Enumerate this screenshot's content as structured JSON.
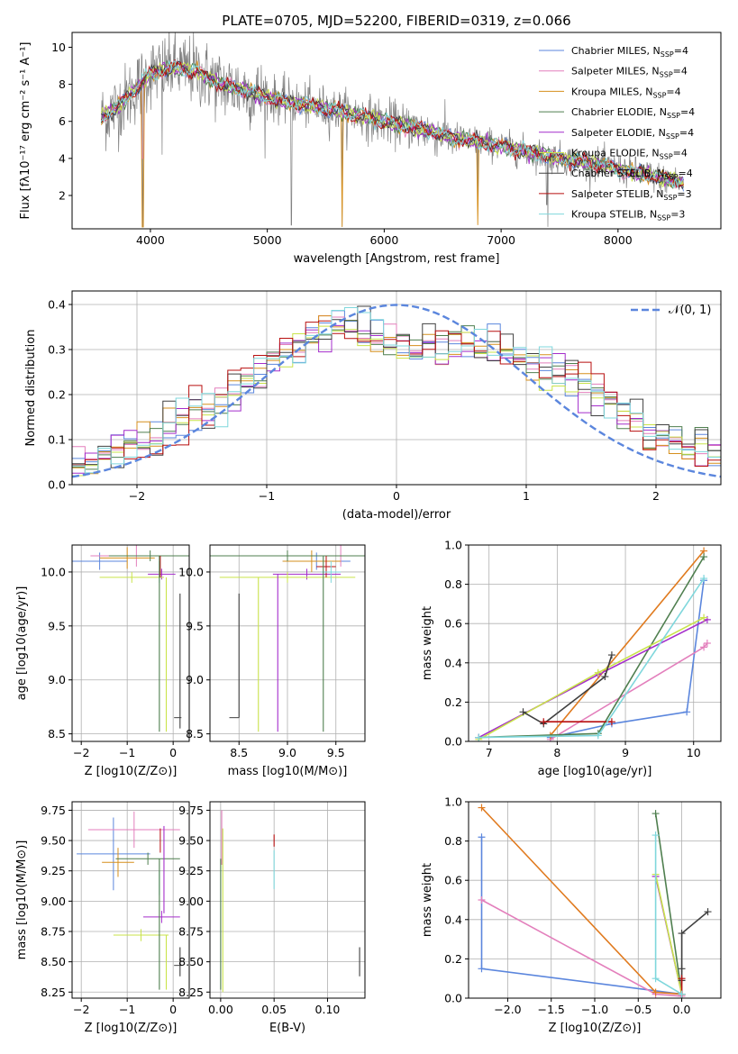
{
  "title": "PLATE=0705, MJD=52200, FIBERID=0319, z=0.066",
  "colors": {
    "Chabrier MILES": "#5b86dd",
    "Salpeter MILES": "#e37fbc",
    "Kroupa MILES": "#d68f1d",
    "Chabrier ELODIE": "#4f7f4f",
    "Salpeter ELODIE": "#a42dcb",
    "Kroupa ELODIE": "#c9e34a",
    "Chabrier STELIB": "#404040",
    "Salpeter STELIB": "#b80f0f",
    "Kroupa STELIB": "#7fd7dc",
    "data": "#808080",
    "normal": "#5b86dd",
    "orange": "#e07a1e"
  },
  "chart_data": [
    {
      "id": "spectrum",
      "type": "line",
      "title": "PLATE=0705, MJD=52200, FIBERID=0319, z=0.066",
      "xlabel": "wavelength [Angstrom, rest frame]",
      "ylabel": "Flux [fλ10⁻¹⁷ erg cm⁻² s⁻¹ A⁻¹]",
      "xlim": [
        3330,
        8880
      ],
      "ylim": [
        0.2,
        10.8
      ],
      "xticks": [
        4000,
        5000,
        6000,
        7000,
        8000
      ],
      "yticks": [
        2,
        4,
        6,
        8,
        10
      ],
      "legend_position": "upper-right",
      "legend": [
        {
          "name": "Chabrier MILES, N",
          "sub": "SSP",
          "tail": "=4"
        },
        {
          "name": "Salpeter MILES, N",
          "sub": "SSP",
          "tail": "=4"
        },
        {
          "name": "Kroupa MILES, N",
          "sub": "SSP",
          "tail": "=4"
        },
        {
          "name": "Chabrier ELODIE, N",
          "sub": "SSP",
          "tail": "=4"
        },
        {
          "name": "Salpeter ELODIE, N",
          "sub": "SSP",
          "tail": "=4"
        },
        {
          "name": "Kroupa ELODIE, N",
          "sub": "SSP",
          "tail": "=4"
        },
        {
          "name": "Chabrier STELIB, N",
          "sub": "SSP",
          "tail": "=4"
        },
        {
          "name": "Salpeter STELIB, N",
          "sub": "SSP",
          "tail": "=3"
        },
        {
          "name": "Kroupa STELIB, N",
          "sub": "SSP",
          "tail": "=3"
        }
      ],
      "data_range": [
        3580,
        8560
      ],
      "continuum": [
        [
          3580,
          6.2
        ],
        [
          3700,
          6.7
        ],
        [
          3850,
          7.6
        ],
        [
          4000,
          8.6
        ],
        [
          4200,
          8.9
        ],
        [
          4400,
          8.7
        ],
        [
          4600,
          8.0
        ],
        [
          4800,
          7.7
        ],
        [
          5000,
          7.3
        ],
        [
          5200,
          7.0
        ],
        [
          5500,
          6.7
        ],
        [
          5800,
          6.3
        ],
        [
          6000,
          6.0
        ],
        [
          6300,
          5.6
        ],
        [
          6600,
          5.1
        ],
        [
          6900,
          4.8
        ],
        [
          7200,
          4.4
        ],
        [
          7500,
          4.0
        ],
        [
          7800,
          3.7
        ],
        [
          8100,
          3.3
        ],
        [
          8400,
          2.9
        ],
        [
          8560,
          2.7
        ]
      ],
      "dips": [
        [
          3933,
          0.3
        ],
        [
          4100,
          4.2
        ],
        [
          5205,
          0.4
        ],
        [
          5640,
          0.3
        ],
        [
          6800,
          1.8
        ],
        [
          7400,
          0.3
        ],
        [
          7390,
          1.5
        ]
      ]
    },
    {
      "id": "residuals",
      "type": "histogram",
      "xlabel": "(data-model)/error",
      "ylabel": "Normed distribution",
      "xlim": [
        -2.5,
        2.5
      ],
      "ylim": [
        0,
        0.43
      ],
      "xticks": [
        -2,
        -1,
        0,
        1,
        2
      ],
      "yticks": [
        0.0,
        0.1,
        0.2,
        0.3,
        0.4
      ],
      "legend_position": "upper-right",
      "legend_label": "𝒩(0, 1)",
      "bin_width": 0.1,
      "base": [
        0.04,
        0.045,
        0.06,
        0.08,
        0.085,
        0.09,
        0.1,
        0.12,
        0.14,
        0.15,
        0.17,
        0.19,
        0.21,
        0.23,
        0.25,
        0.27,
        0.29,
        0.31,
        0.33,
        0.35,
        0.36,
        0.35,
        0.34,
        0.33,
        0.32,
        0.31,
        0.3,
        0.3,
        0.3,
        0.31,
        0.31,
        0.3,
        0.3,
        0.29,
        0.28,
        0.27,
        0.26,
        0.25,
        0.24,
        0.22,
        0.2,
        0.18,
        0.16,
        0.14,
        0.12,
        0.11,
        0.1,
        0.09,
        0.08,
        0.07
      ]
    },
    {
      "id": "age-Z",
      "type": "scatter",
      "xlabel": "Z [log10(Z/Z⊙)]",
      "ylabel": "age  [log10(age/yr)]",
      "xlim": [
        -2.2,
        0.35
      ],
      "ylim": [
        8.43,
        10.25
      ],
      "xticks": [
        -2,
        -1,
        0
      ],
      "yticks": [
        8.5,
        9.0,
        9.5,
        10.0
      ],
      "points": [
        {
          "model": "Chabrier MILES",
          "x": -1.6,
          "y": 10.1,
          "xerr": 0.6,
          "yerr": 0.08
        },
        {
          "model": "Salpeter MILES",
          "x": -0.8,
          "y": 10.15,
          "xerr": 1.0,
          "yerr": 0.1
        },
        {
          "model": "Kroupa MILES",
          "x": -1.0,
          "y": 10.13,
          "xerr": 0.6,
          "yerr": 0.1
        },
        {
          "model": "Chabrier ELODIE",
          "x": -0.5,
          "y": 10.15,
          "xerr": 0.9,
          "yerr": 0.05
        },
        {
          "model": "Salpeter ELODIE",
          "x": -0.25,
          "y": 9.98,
          "xerr": 0.3,
          "yerr": 0.05
        },
        {
          "model": "Kroupa ELODIE",
          "x": -0.9,
          "y": 9.95,
          "xerr": 0.7,
          "yerr": 0.05
        },
        {
          "model": "Chabrier STELIB",
          "x": 0.1,
          "y": 8.65,
          "xerr": 0.08,
          "yerr": 0.0
        },
        {
          "model": "Salpeter STELIB",
          "x": -0.28,
          "y": 10.05,
          "xerr": 0.0,
          "yerr": 0.1
        },
        {
          "model": "Kroupa STELIB",
          "x": -0.3,
          "y": 10.0,
          "xerr": 0.0,
          "yerr": 0.1
        }
      ],
      "vlines": [
        {
          "model": "Chabrier ELODIE",
          "x": -0.3,
          "y0": 8.52,
          "y1": 10.15
        },
        {
          "model": "Kroupa ELODIE",
          "x": -0.15,
          "y0": 8.52,
          "y1": 9.95
        },
        {
          "model": "Chabrier STELIB",
          "x": 0.15,
          "y0": 8.55,
          "y1": 9.8
        }
      ]
    },
    {
      "id": "age-mass",
      "type": "scatter",
      "xlabel": "mass [log10(M/M⊙)]",
      "ylabel": "",
      "xlim": [
        8.2,
        9.8
      ],
      "ylim": [
        8.43,
        10.25
      ],
      "xticks": [
        8.5,
        9.0,
        9.5
      ],
      "yticks": [
        8.5,
        9.0,
        9.5,
        10.0
      ],
      "points": [
        {
          "model": "Chabrier MILES",
          "x": 9.3,
          "y": 10.1,
          "xerr": 0.35,
          "yerr": 0.08
        },
        {
          "model": "Salpeter MILES",
          "x": 9.55,
          "y": 10.15,
          "xerr": 0.3,
          "yerr": 0.1
        },
        {
          "model": "Kroupa MILES",
          "x": 9.25,
          "y": 10.1,
          "xerr": 0.3,
          "yerr": 0.1
        },
        {
          "model": "Chabrier ELODIE",
          "x": 9.0,
          "y": 10.15,
          "xerr": 0.8,
          "yerr": 0.05
        },
        {
          "model": "Salpeter ELODIE",
          "x": 9.2,
          "y": 9.98,
          "xerr": 0.35,
          "yerr": 0.05
        },
        {
          "model": "Kroupa ELODIE",
          "x": 9.0,
          "y": 9.95,
          "xerr": 0.7,
          "yerr": 0.05
        },
        {
          "model": "Chabrier STELIB",
          "x": 8.45,
          "y": 8.65,
          "xerr": 0.05,
          "yerr": 0.0
        },
        {
          "model": "Salpeter STELIB",
          "x": 9.4,
          "y": 10.05,
          "xerr": 0.1,
          "yerr": 0.1
        },
        {
          "model": "Kroupa STELIB",
          "x": 9.45,
          "y": 10.0,
          "xerr": 0.1,
          "yerr": 0.1
        }
      ],
      "vlines": [
        {
          "model": "Chabrier STELIB",
          "x": 8.5,
          "y0": 8.65,
          "y1": 9.8
        },
        {
          "model": "Kroupa ELODIE",
          "x": 8.7,
          "y0": 8.52,
          "y1": 9.95
        },
        {
          "model": "Salpeter ELODIE",
          "x": 8.9,
          "y0": 8.52,
          "y1": 9.98
        },
        {
          "model": "Chabrier ELODIE",
          "x": 9.37,
          "y0": 8.52,
          "y1": 10.15
        }
      ]
    },
    {
      "id": "weight-age",
      "type": "line",
      "xlabel": "age  [log10(age/yr)]",
      "ylabel": "mass weight",
      "xlim": [
        6.7,
        10.4
      ],
      "ylim": [
        0.0,
        1.0
      ],
      "xticks": [
        7,
        8,
        9,
        10
      ],
      "yticks": [
        0.0,
        0.2,
        0.4,
        0.6,
        0.8,
        1.0
      ],
      "series": [
        {
          "model": "Chabrier MILES",
          "x": [
            7.9,
            8.8,
            9.9,
            10.15
          ],
          "y": [
            0.02,
            0.09,
            0.15,
            0.82
          ]
        },
        {
          "model": "Salpeter MILES",
          "x": [
            7.9,
            10.15,
            10.2
          ],
          "y": [
            0.01,
            0.48,
            0.5
          ]
        },
        {
          "model": "Kroupa MILES",
          "x": [
            7.9,
            10.15
          ],
          "y": [
            0.03,
            0.97
          ]
        },
        {
          "model": "Chabrier ELODIE",
          "x": [
            6.85,
            8.6,
            10.15
          ],
          "y": [
            0.02,
            0.04,
            0.94
          ]
        },
        {
          "model": "Salpeter ELODIE",
          "x": [
            6.85,
            8.6,
            10.2
          ],
          "y": [
            0.02,
            0.34,
            0.62
          ]
        },
        {
          "model": "Kroupa ELODIE",
          "x": [
            6.85,
            8.6,
            10.15
          ],
          "y": [
            0.01,
            0.35,
            0.63
          ]
        },
        {
          "model": "Chabrier STELIB",
          "x": [
            7.5,
            7.8,
            8.7,
            8.8
          ],
          "y": [
            0.15,
            0.09,
            0.33,
            0.44
          ]
        },
        {
          "model": "Salpeter STELIB",
          "x": [
            7.8,
            8.8
          ],
          "y": [
            0.1,
            0.1
          ]
        },
        {
          "model": "Kroupa STELIB",
          "x": [
            6.85,
            8.6,
            10.15
          ],
          "y": [
            0.02,
            0.03,
            0.83
          ]
        }
      ]
    },
    {
      "id": "mass-Z",
      "type": "scatter",
      "xlabel": "Z [log10(Z/Z⊙)]",
      "ylabel": "mass [log10(M/M⊙)]",
      "xlim": [
        -2.2,
        0.35
      ],
      "ylim": [
        8.2,
        9.82
      ],
      "xticks": [
        -2,
        -1,
        0
      ],
      "yticks": [
        8.25,
        8.5,
        8.75,
        9.0,
        9.25,
        9.5,
        9.75
      ],
      "points": [
        {
          "model": "Chabrier MILES",
          "x": -1.3,
          "y": 9.39,
          "xerr": 0.8,
          "yerr": 0.3
        },
        {
          "model": "Salpeter MILES",
          "x": -0.85,
          "y": 9.59,
          "xerr": 1.0,
          "yerr": 0.15
        },
        {
          "model": "Kroupa MILES",
          "x": -1.2,
          "y": 9.32,
          "xerr": 0.35,
          "yerr": 0.12
        },
        {
          "model": "Chabrier ELODIE",
          "x": -0.55,
          "y": 9.35,
          "xerr": 0.7,
          "yerr": 0.05
        },
        {
          "model": "Salpeter ELODIE",
          "x": -0.25,
          "y": 8.87,
          "xerr": 0.4,
          "yerr": 0.05
        },
        {
          "model": "Kroupa ELODIE",
          "x": -0.7,
          "y": 8.72,
          "xerr": 0.6,
          "yerr": 0.05
        },
        {
          "model": "Chabrier STELIB",
          "x": 0.1,
          "y": 8.47,
          "xerr": 0.08,
          "yerr": 0.0
        },
        {
          "model": "Salpeter STELIB",
          "x": -0.28,
          "y": 9.5,
          "xerr": 0.0,
          "yerr": 0.1
        },
        {
          "model": "Kroupa STELIB",
          "x": -0.3,
          "y": 9.15,
          "xerr": 0.0,
          "yerr": 0.1
        }
      ],
      "vlines": [
        {
          "model": "Chabrier ELODIE",
          "x": -0.3,
          "y0": 8.27,
          "y1": 9.35
        },
        {
          "model": "Salpeter ELODIE",
          "x": -0.2,
          "y0": 8.9,
          "y1": 9.62
        },
        {
          "model": "Kroupa ELODIE",
          "x": -0.15,
          "y0": 8.27,
          "y1": 8.72
        },
        {
          "model": "Chabrier STELIB",
          "x": 0.15,
          "y0": 8.38,
          "y1": 8.62
        }
      ]
    },
    {
      "id": "mass-EBV",
      "type": "scatter",
      "xlabel": "E(B-V)",
      "ylabel": "",
      "xlim": [
        -0.01,
        0.135
      ],
      "ylim": [
        8.2,
        9.82
      ],
      "xticks": [
        0.0,
        0.05,
        0.1
      ],
      "yticks": [
        8.25,
        8.5,
        8.75,
        9.0,
        9.25,
        9.5,
        9.75
      ],
      "vlines": [
        {
          "model": "Salpeter MILES",
          "x": 0.001,
          "y0": 9.3,
          "y1": 9.75
        },
        {
          "model": "Chabrier ELODIE",
          "x": 0.0,
          "y0": 8.27,
          "y1": 9.35
        },
        {
          "model": "Kroupa ELODIE",
          "x": 0.002,
          "y0": 8.25,
          "y1": 9.6
        },
        {
          "model": "Salpeter STELIB",
          "x": 0.05,
          "y0": 9.45,
          "y1": 9.55
        },
        {
          "model": "Kroupa STELIB",
          "x": 0.05,
          "y0": 9.1,
          "y1": 9.42
        },
        {
          "model": "Chabrier STELIB",
          "x": 0.13,
          "y0": 8.38,
          "y1": 8.62
        }
      ]
    },
    {
      "id": "weight-Z",
      "type": "line",
      "xlabel": "Z [log10(Z/Z⊙)]",
      "ylabel": "mass weight",
      "xlim": [
        -2.45,
        0.45
      ],
      "ylim": [
        0.0,
        1.0
      ],
      "xticks": [
        -2.0,
        -1.5,
        -1.0,
        -0.5,
        0.0
      ],
      "yticks": [
        0.0,
        0.2,
        0.4,
        0.6,
        0.8,
        1.0
      ],
      "series": [
        {
          "model": "Chabrier MILES",
          "x": [
            -2.3,
            -2.3,
            0.0
          ],
          "y": [
            0.82,
            0.15,
            0.02
          ]
        },
        {
          "model": "Salpeter MILES",
          "x": [
            -2.3,
            -0.3,
            0.0
          ],
          "y": [
            0.5,
            0.02,
            0.01
          ]
        },
        {
          "model": "Kroupa MILES",
          "x": [
            -2.3,
            -0.3,
            0.0
          ],
          "y": [
            0.97,
            0.03,
            0.02
          ]
        },
        {
          "model": "Chabrier ELODIE",
          "x": [
            -0.3,
            0.0
          ],
          "y": [
            0.94,
            0.02
          ]
        },
        {
          "model": "Salpeter ELODIE",
          "x": [
            -0.3,
            0.0
          ],
          "y": [
            0.62,
            0.02
          ]
        },
        {
          "model": "Kroupa ELODIE",
          "x": [
            -0.3,
            0.0
          ],
          "y": [
            0.63,
            0.02
          ]
        },
        {
          "model": "Chabrier STELIB",
          "x": [
            0.3,
            0.0,
            0.0,
            0.0
          ],
          "y": [
            0.44,
            0.33,
            0.15,
            0.09
          ]
        },
        {
          "model": "Salpeter STELIB",
          "x": [
            0.0,
            0.0
          ],
          "y": [
            0.1,
            0.02
          ]
        },
        {
          "model": "Kroupa STELIB",
          "x": [
            -0.3,
            -0.3,
            0.0
          ],
          "y": [
            0.83,
            0.1,
            0.02
          ]
        }
      ]
    }
  ]
}
